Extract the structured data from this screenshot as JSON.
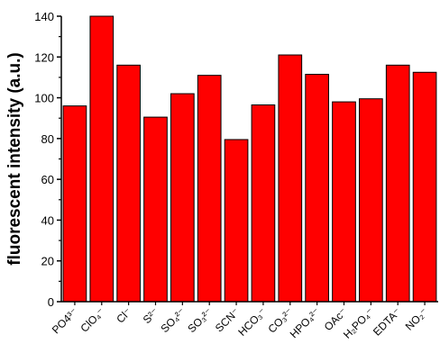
{
  "chart_data": {
    "type": "bar",
    "title": "",
    "xlabel": "",
    "ylabel": "fluorescent intensity (a.u.)",
    "ylim": [
      0,
      140
    ],
    "yticks": [
      0,
      20,
      40,
      60,
      80,
      100,
      120,
      140
    ],
    "categories": [
      "PO4³⁻",
      "ClO₄⁻",
      "Cl⁻",
      "S²⁻",
      "SO₄²⁻",
      "SO₃²⁻",
      "SCN⁻",
      "HCO₃⁻",
      "CO₃²⁻",
      "HPO₄²⁻",
      "OAc⁻",
      "H₂PO₄⁻",
      "EDTA⁻",
      "NO₂⁻"
    ],
    "values": [
      96,
      140,
      116,
      90.5,
      102,
      111,
      79.5,
      96.5,
      121,
      111.5,
      98,
      99.5,
      116,
      112.5
    ],
    "grid": false,
    "colors": {
      "bar": "#ff0000",
      "bar_edge": "#000000"
    }
  }
}
